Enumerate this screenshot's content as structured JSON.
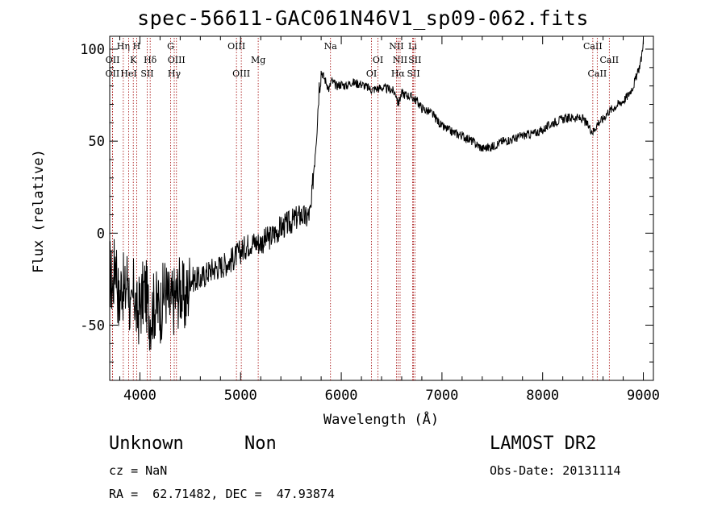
{
  "title": "spec-56611-GAC061N46V1_sp09-062.fits",
  "chart_data": {
    "type": "line",
    "xlabel": "Wavelength (Å)",
    "ylabel": "Flux (relative)",
    "xlim": [
      3700,
      9100
    ],
    "ylim": [
      -80,
      107
    ],
    "x_ticks": [
      4000,
      5000,
      6000,
      7000,
      8000,
      9000
    ],
    "y_ticks": [
      -50,
      0,
      50,
      100
    ],
    "series": [
      {
        "x": [
          3700,
          3730,
          3760,
          3790,
          3820,
          3850,
          3880,
          3910,
          3940,
          3970,
          4000,
          4050,
          4100,
          4150,
          4200,
          4250,
          4300,
          4350,
          4400,
          4450,
          4500,
          4600,
          4700,
          4800,
          4900,
          5000,
          5100,
          5200,
          5300,
          5400,
          5500,
          5600,
          5650,
          5700,
          5720,
          5740,
          5760,
          5780,
          5800,
          5850,
          5880,
          5900,
          5950,
          6000,
          6050,
          6100,
          6200,
          6300,
          6400,
          6500,
          6550,
          6563,
          6600,
          6650,
          6700,
          6750,
          6800,
          6900,
          7000,
          7100,
          7200,
          7300,
          7400,
          7500,
          7600,
          7700,
          7800,
          7900,
          8000,
          8100,
          8200,
          8300,
          8400,
          8500,
          8550,
          8600,
          8650,
          8700,
          8750,
          8800,
          8850,
          8900,
          8950,
          8980,
          9000
        ],
        "y": [
          -20,
          -30,
          -10,
          -40,
          -25,
          -35,
          -20,
          -50,
          -30,
          -45,
          -40,
          -30,
          -45,
          -38,
          -42,
          -30,
          -40,
          -35,
          -30,
          -38,
          -25,
          -25,
          -20,
          -18,
          -15,
          -10,
          -5,
          -5,
          -2,
          3,
          6,
          10,
          8,
          12,
          30,
          45,
          60,
          80,
          88,
          82,
          78,
          83,
          80,
          81,
          80,
          82,
          81,
          78,
          79,
          78,
          75,
          70,
          76,
          75,
          74,
          72,
          68,
          65,
          58,
          55,
          53,
          50,
          46,
          47,
          50,
          51,
          53,
          54,
          56,
          60,
          62,
          63,
          62,
          55,
          60,
          62,
          66,
          68,
          70,
          72,
          75,
          80,
          88,
          95,
          105
        ]
      }
    ],
    "line_markers": [
      {
        "label": "OII",
        "x": 3727,
        "row": 2
      },
      {
        "label": "OII",
        "x": 3729,
        "row": 1
      },
      {
        "label": "Hη",
        "x": 3835,
        "row": 0
      },
      {
        "label": "HeI",
        "x": 3889,
        "row": 2
      },
      {
        "label": "H",
        "x": 3968,
        "row": 0
      },
      {
        "label": "K",
        "x": 3934,
        "row": 1
      },
      {
        "label": "SII",
        "x": 4072,
        "row": 2
      },
      {
        "label": "Hδ",
        "x": 4102,
        "row": 1
      },
      {
        "label": "G",
        "x": 4305,
        "row": 0
      },
      {
        "label": "OIII",
        "x": 4363,
        "row": 1
      },
      {
        "label": "Hγ",
        "x": 4341,
        "row": 2
      },
      {
        "label": "OIII",
        "x": 4959,
        "row": 0
      },
      {
        "label": "OIII",
        "x": 5007,
        "row": 2
      },
      {
        "label": "Mg",
        "x": 5175,
        "row": 1
      },
      {
        "label": "Na",
        "x": 5893,
        "row": 0
      },
      {
        "label": "OI",
        "x": 6300,
        "row": 2
      },
      {
        "label": "OI",
        "x": 6364,
        "row": 1
      },
      {
        "label": "NII",
        "x": 6548,
        "row": 0
      },
      {
        "label": "NII",
        "x": 6584,
        "row": 1
      },
      {
        "label": "Hα",
        "x": 6563,
        "row": 2
      },
      {
        "label": "Li",
        "x": 6708,
        "row": 0
      },
      {
        "label": "SII",
        "x": 6717,
        "row": 2
      },
      {
        "label": "SII",
        "x": 6731,
        "row": 1
      },
      {
        "label": "CaII",
        "x": 8498,
        "row": 0
      },
      {
        "label": "CaII",
        "x": 8542,
        "row": 2
      },
      {
        "label": "CaII",
        "x": 8662,
        "row": 1
      }
    ]
  },
  "info": {
    "class": "Unknown",
    "subclass": "Non",
    "survey": "LAMOST DR2",
    "cz": "cz = NaN",
    "obsdate": "Obs-Date: 20131114",
    "radec": "RA =  62.71482, DEC =  47.93874"
  }
}
